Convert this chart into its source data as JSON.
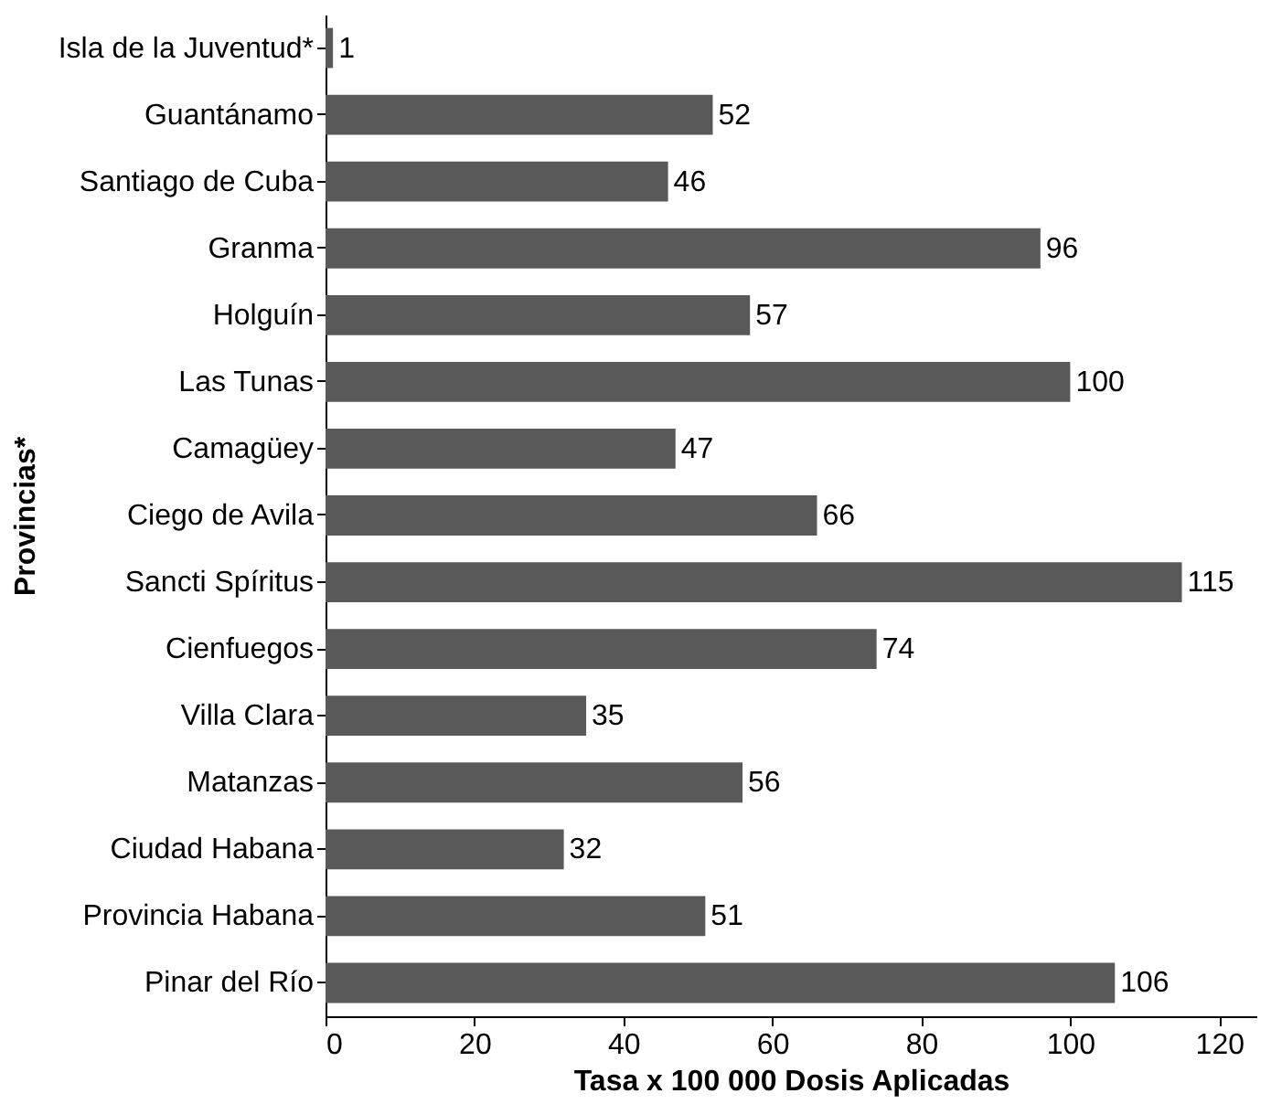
{
  "chart_data": {
    "type": "bar",
    "orientation": "horizontal",
    "xlabel": "Tasa x 100 000 Dosis Aplicadas",
    "ylabel": "Provincias*",
    "categories": [
      "Isla de la Juventud*",
      "Guantánamo",
      "Santiago de Cuba",
      "Granma",
      "Holguín",
      "Las Tunas",
      "Camagüey",
      "Ciego de Avila",
      "Sancti Spíritus",
      "Cienfuegos",
      "Villa Clara",
      "Matanzas",
      "Ciudad Habana",
      "Provincia Habana",
      "Pinar del Río"
    ],
    "values": [
      1,
      52,
      46,
      96,
      57,
      100,
      47,
      66,
      115,
      74,
      35,
      56,
      32,
      51,
      106
    ],
    "color": "#595959",
    "data_labels": true,
    "xlim": [
      0,
      125
    ],
    "xticks": [
      0,
      20,
      40,
      60,
      80,
      100,
      120
    ],
    "grid": false
  }
}
